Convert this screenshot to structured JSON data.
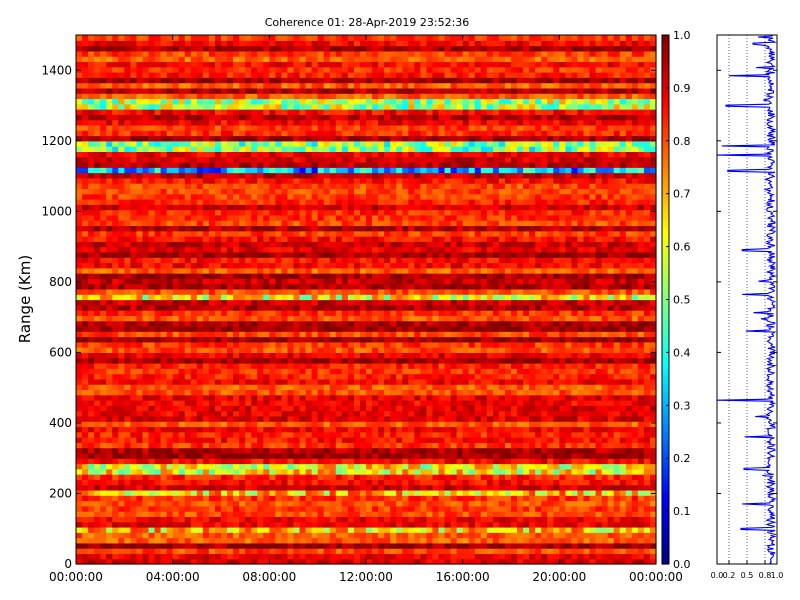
{
  "chart_data": [
    {
      "type": "heatmap",
      "title": "Coherence 01: 28-Apr-2019 23:52:36",
      "ylabel": "Range (Km)",
      "xlabel": "",
      "x_ticks": [
        "00:00:00",
        "04:00:00",
        "08:00:00",
        "12:00:00",
        "16:00:00",
        "20:00:00",
        "00:00:00"
      ],
      "x_range": [
        0,
        24
      ],
      "y_ticks": [
        0,
        200,
        400,
        600,
        800,
        1000,
        1200,
        1400
      ],
      "ylim": [
        0,
        1500
      ],
      "colormap": "jet",
      "colorbar": {
        "min": 0.0,
        "max": 1.0,
        "ticks": [
          "0.0",
          "0.1",
          "0.2",
          "0.3",
          "0.4",
          "0.5",
          "0.6",
          "0.7",
          "0.8",
          "0.9",
          "1.0"
        ]
      },
      "range_bands": [
        {
          "range_km": [
            1298,
            1310
          ],
          "coherence": 0.55
        },
        {
          "range_km": [
            1176,
            1196
          ],
          "coherence": 0.5
        },
        {
          "range_km": [
            1108,
            1120
          ],
          "coherence": 0.3
        },
        {
          "range_km": [
            755,
            765
          ],
          "coherence": 0.62
        },
        {
          "range_km": [
            258,
            278
          ],
          "coherence": 0.62
        },
        {
          "range_km": [
            200,
            208
          ],
          "coherence": 0.66
        },
        {
          "range_km": [
            96,
            104
          ],
          "coherence": 0.66
        }
      ],
      "background_coherence": [
        0.78,
        0.98
      ]
    },
    {
      "type": "line",
      "xlim": [
        0.0,
        1.0
      ],
      "x_ticks": [
        "0.0",
        "0.2",
        "0.5",
        "0.8",
        "1.0"
      ],
      "ylim": [
        0,
        1500
      ],
      "grid": "vertical-dotted",
      "dips": [
        {
          "range_km": 1475,
          "value": 0.6
        },
        {
          "range_km": 1385,
          "value": 0.2
        },
        {
          "range_km": 1300,
          "value": 0.15
        },
        {
          "range_km": 1185,
          "value": 0.08
        },
        {
          "range_km": 1160,
          "value": 0.0
        },
        {
          "range_km": 1115,
          "value": 0.18
        },
        {
          "range_km": 890,
          "value": 0.42
        },
        {
          "range_km": 765,
          "value": 0.42
        },
        {
          "range_km": 660,
          "value": 0.48
        },
        {
          "range_km": 465,
          "value": 0.0
        },
        {
          "range_km": 360,
          "value": 0.46
        },
        {
          "range_km": 270,
          "value": 0.45
        },
        {
          "range_km": 170,
          "value": 0.42
        },
        {
          "range_km": 175,
          "value": 0.88
        },
        {
          "range_km": 100,
          "value": 0.4
        }
      ]
    }
  ],
  "colors": {
    "line": "#0000ff",
    "axes": "#000000"
  }
}
